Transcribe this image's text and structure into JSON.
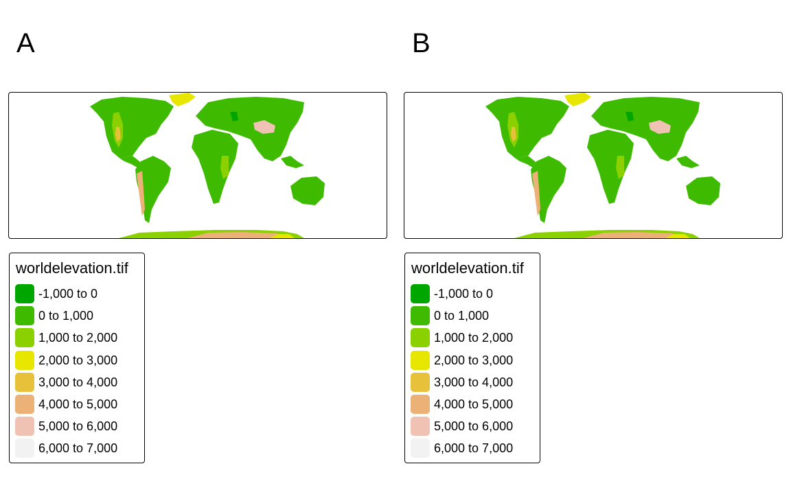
{
  "panels": [
    {
      "tag": "A",
      "legend": {
        "title": "worldelevation.tif",
        "items": [
          {
            "label": "-1,000 to 0",
            "color": "#00A600"
          },
          {
            "label": "0 to 1,000",
            "color": "#3EBB00"
          },
          {
            "label": "1,000 to 2,000",
            "color": "#8BD000"
          },
          {
            "label": "2,000 to 3,000",
            "color": "#E6E600"
          },
          {
            "label": "3,000 to 4,000",
            "color": "#E8C13A"
          },
          {
            "label": "4,000 to 5,000",
            "color": "#ECB176"
          },
          {
            "label": "5,000 to 6,000",
            "color": "#EFC2B3"
          },
          {
            "label": "6,000 to 7,000",
            "color": "#F2F2F2"
          }
        ]
      }
    },
    {
      "tag": "B",
      "legend": {
        "title": "worldelevation.tif",
        "items": [
          {
            "label": "-1,000 to 0",
            "color": "#00A600"
          },
          {
            "label": "0 to 1,000",
            "color": "#3EBB00"
          },
          {
            "label": "1,000 to 2,000",
            "color": "#8BD000"
          },
          {
            "label": "2,000 to 3,000",
            "color": "#E6E600"
          },
          {
            "label": "3,000 to 4,000",
            "color": "#E8C13A"
          },
          {
            "label": "4,000 to 5,000",
            "color": "#ECB176"
          },
          {
            "label": "5,000 to 6,000",
            "color": "#EFC2B3"
          },
          {
            "label": "6,000 to 7,000",
            "color": "#F2F2F2"
          }
        ]
      }
    }
  ]
}
